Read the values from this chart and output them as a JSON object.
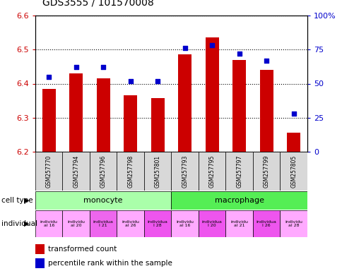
{
  "title": "GDS3555 / 101570008",
  "samples": [
    "GSM257770",
    "GSM257794",
    "GSM257796",
    "GSM257798",
    "GSM257801",
    "GSM257793",
    "GSM257795",
    "GSM257797",
    "GSM257799",
    "GSM257805"
  ],
  "bar_values": [
    6.385,
    6.43,
    6.415,
    6.365,
    6.358,
    6.485,
    6.535,
    6.47,
    6.44,
    6.255
  ],
  "dot_values": [
    55,
    62,
    62,
    52,
    52,
    76,
    78,
    72,
    67,
    28
  ],
  "ylim_left": [
    6.2,
    6.6
  ],
  "ylim_right": [
    0,
    100
  ],
  "bar_color": "#cc0000",
  "dot_color": "#0000cc",
  "cell_types": [
    {
      "label": "monocyte",
      "start": 0,
      "end": 5,
      "color": "#aaffaa"
    },
    {
      "label": "macrophage",
      "start": 5,
      "end": 10,
      "color": "#55ee55"
    }
  ],
  "ind_labels": [
    "individu\nal 16",
    "individu\nal 20",
    "individua\nl 21",
    "individu\nal 26",
    "individua\nl 28",
    "individu\nal 16",
    "individua\nl 20",
    "individu\nal 21",
    "individua\nl 26",
    "individu\nal 28"
  ],
  "ind_colors": [
    "#ffaaff",
    "#ffaaff",
    "#ee66ee",
    "#ffaaff",
    "#ee55ee",
    "#ffaaff",
    "#ee55ee",
    "#ffaaff",
    "#ee55ee",
    "#ffaaff"
  ],
  "yticks_left": [
    6.2,
    6.3,
    6.4,
    6.5,
    6.6
  ],
  "yticks_right": [
    0,
    25,
    50,
    75,
    100
  ],
  "ytick_labels_right": [
    "0",
    "25",
    "50",
    "75",
    "100%"
  ],
  "tick_color_left": "#cc0000",
  "tick_color_right": "#0000cc",
  "legend_bar_label": "transformed count",
  "legend_dot_label": "percentile rank within the sample",
  "label_cell_type": "cell type",
  "label_individual": "individual"
}
